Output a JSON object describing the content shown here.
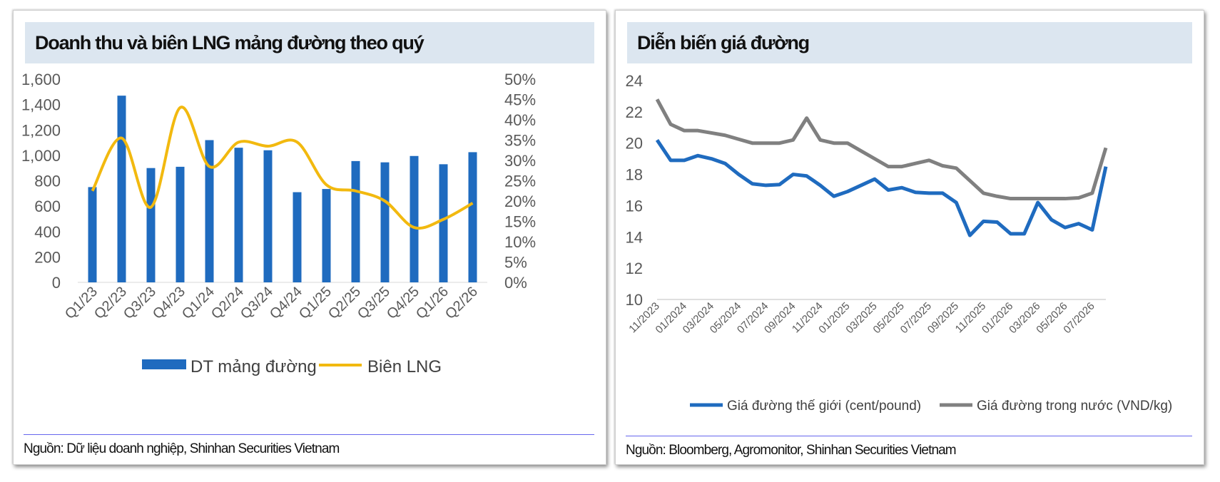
{
  "chart_data": [
    {
      "type": "bar",
      "title": "Doanh thu và biên LNG mảng đường theo quý",
      "categories": [
        "Q1/23",
        "Q2/23",
        "Q3/23",
        "Q4/23",
        "Q1/24",
        "Q2/24",
        "Q3/24",
        "Q4/24",
        "Q1/25",
        "Q2/25",
        "Q3/25",
        "Q4/25",
        "Q1/26",
        "Q2/26"
      ],
      "series": [
        {
          "name": "DT mảng đường",
          "type": "bar",
          "axis": "left",
          "color": "#1f6bbf",
          "values": [
            750,
            1470,
            900,
            910,
            1120,
            1060,
            1040,
            710,
            735,
            955,
            945,
            995,
            930,
            1025
          ]
        },
        {
          "name": "Biên LNG",
          "type": "line",
          "axis": "right",
          "color": "#f2b90f",
          "values": [
            0.225,
            0.355,
            0.185,
            0.43,
            0.285,
            0.345,
            0.335,
            0.345,
            0.24,
            0.225,
            0.2,
            0.135,
            0.155,
            0.195
          ]
        }
      ],
      "ylim": [
        0,
        1600
      ],
      "y_ticks": [
        "0",
        "200",
        "400",
        "600",
        "800",
        "1,000",
        "1,200",
        "1,400",
        "1,600"
      ],
      "y2lim": [
        0,
        0.5
      ],
      "y2_ticks": [
        "0%",
        "5%",
        "10%",
        "15%",
        "20%",
        "25%",
        "30%",
        "35%",
        "40%",
        "45%",
        "50%"
      ],
      "grid": false,
      "legend": "bottom",
      "source": "Nguồn: Dữ liệu doanh nghiệp, Shinhan Securities Vietnam"
    },
    {
      "type": "line",
      "title": "Diễn biến giá đường",
      "x": [
        "11/2023",
        "12/2023",
        "01/2024",
        "02/2024",
        "03/2024",
        "04/2024",
        "05/2024",
        "06/2024",
        "07/2024",
        "08/2024",
        "09/2024",
        "10/2024",
        "11/2024",
        "12/2024",
        "01/2025",
        "02/2025",
        "03/2025",
        "04/2025",
        "05/2025",
        "06/2025",
        "07/2025",
        "08/2025",
        "09/2025",
        "10/2025",
        "11/2025",
        "12/2025",
        "01/2026",
        "02/2026",
        "03/2026",
        "04/2026",
        "05/2026",
        "06/2026",
        "07/2026",
        "08/2026"
      ],
      "x_tick_labels": [
        "11/2023",
        "01/2024",
        "03/2024",
        "05/2024",
        "07/2024",
        "09/2024",
        "11/2024",
        "01/2025",
        "03/2025",
        "05/2025",
        "07/2025",
        "09/2025",
        "11/2025",
        "01/2026",
        "03/2026",
        "05/2026",
        "07/2026"
      ],
      "series": [
        {
          "name": "Giá đường thế giới (cent/pound)",
          "color": "#1f6bbf",
          "values": [
            20.2,
            18.9,
            18.9,
            19.2,
            19.0,
            18.7,
            18.0,
            17.4,
            17.3,
            17.35,
            18.0,
            17.9,
            17.3,
            16.6,
            16.9,
            17.3,
            17.7,
            17.0,
            17.15,
            16.85,
            16.8,
            16.8,
            16.2,
            14.1,
            15.0,
            14.95,
            14.2,
            14.2,
            16.2,
            15.1,
            14.6,
            14.85,
            14.45,
            18.5
          ]
        },
        {
          "name": "Giá đường trong nước (VND/kg)",
          "color": "#808080",
          "values": [
            22.8,
            21.2,
            20.8,
            20.8,
            20.65,
            20.5,
            20.25,
            20.0,
            20.0,
            20.0,
            20.2,
            21.6,
            20.2,
            20.0,
            20.0,
            19.5,
            19.0,
            18.5,
            18.5,
            18.7,
            18.9,
            18.55,
            18.4,
            17.6,
            16.8,
            16.6,
            16.45,
            16.45,
            16.45,
            16.45,
            16.45,
            16.5,
            16.8,
            19.7
          ]
        }
      ],
      "ylim": [
        10,
        24
      ],
      "y_ticks": [
        "10",
        "12",
        "14",
        "16",
        "18",
        "20",
        "22",
        "24"
      ],
      "grid": false,
      "legend": "bottom",
      "source": "Nguồn: Bloomberg, Agromonitor, Shinhan Securities Vietnam"
    }
  ]
}
